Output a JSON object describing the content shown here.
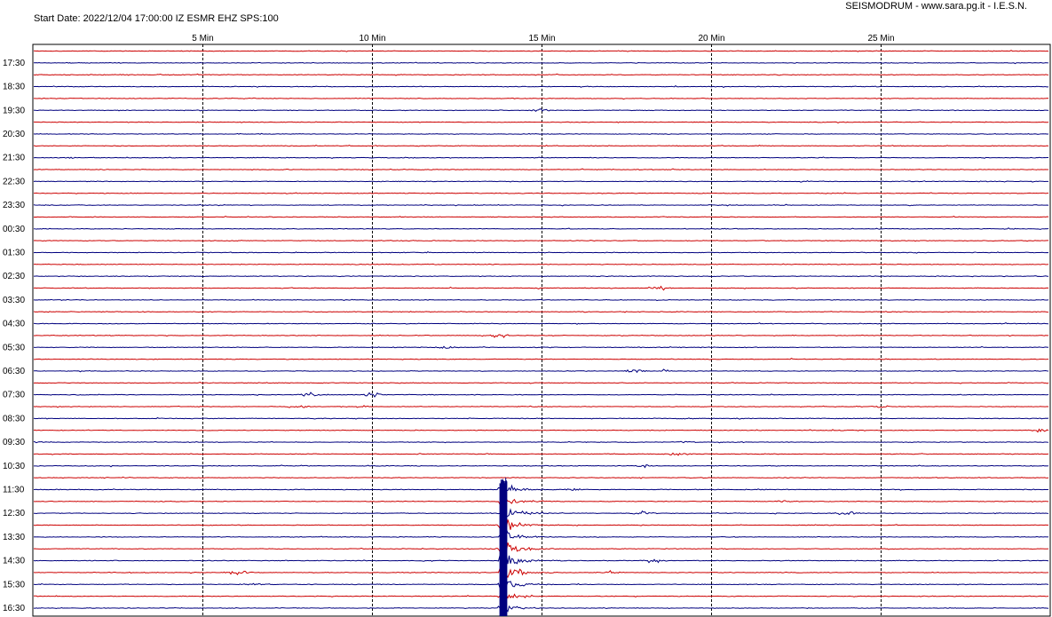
{
  "header": {
    "start_date": "Start Date: 2022/12/04 17:00:00 IZ ESMR EHZ SPS:100",
    "credit": "SEISMODRUM - www.sara.pg.it - I.E.S.N."
  },
  "chart_data": {
    "type": "line",
    "title": "",
    "x_unit": "Min",
    "xlim": [
      0,
      30
    ],
    "x_ticks": [
      {
        "value": 5,
        "label": "5 Min"
      },
      {
        "value": 10,
        "label": "10 Min"
      },
      {
        "value": 15,
        "label": "15 Min"
      },
      {
        "value": 20,
        "label": "20 Min"
      },
      {
        "value": 25,
        "label": "25 Min"
      }
    ],
    "grid": true,
    "row_labels": [
      "17:30",
      "18:30",
      "19:30",
      "20:30",
      "21:30",
      "22:30",
      "23:30",
      "00:30",
      "01:30",
      "02:30",
      "03:30",
      "04:30",
      "05:30",
      "06:30",
      "07:30",
      "08:30",
      "09:30",
      "10:30",
      "11:30",
      "12:30",
      "13:30",
      "14:30",
      "15:30",
      "16:30"
    ],
    "trace_colors": {
      "even": "#cc0000",
      "odd": "#00007f",
      "background": "#ffffff",
      "grid": "#000000"
    },
    "events": [
      {
        "trace": 2,
        "minute": 2.7,
        "amplitude": 0.8
      },
      {
        "trace": 5,
        "minute": 15.0,
        "amplitude": 1.5
      },
      {
        "trace": 9,
        "minute": 1.1,
        "amplitude": 0.6
      },
      {
        "trace": 9,
        "minute": 11.1,
        "amplitude": 0.6
      },
      {
        "trace": 20,
        "minute": 18.5,
        "amplitude": 2.6
      },
      {
        "trace": 24,
        "minute": 13.8,
        "amplitude": 2.5
      },
      {
        "trace": 25,
        "minute": 12.2,
        "amplitude": 2.6
      },
      {
        "trace": 27,
        "minute": 17.8,
        "amplitude": 2.8
      },
      {
        "trace": 27,
        "minute": 18.6,
        "amplitude": 2.0
      },
      {
        "trace": 29,
        "minute": 8.2,
        "amplitude": 3.2
      },
      {
        "trace": 29,
        "minute": 10.0,
        "amplitude": 3.4
      },
      {
        "trace": 30,
        "minute": 7.8,
        "amplitude": 1.8
      },
      {
        "trace": 30,
        "minute": 9.8,
        "amplitude": 1.4
      },
      {
        "trace": 30,
        "minute": 25.0,
        "amplitude": 1.4
      },
      {
        "trace": 31,
        "minute": 19.3,
        "amplitude": 1.0
      },
      {
        "trace": 32,
        "minute": 29.8,
        "amplitude": 2.5
      },
      {
        "trace": 33,
        "minute": 0.1,
        "amplitude": 1.5
      },
      {
        "trace": 33,
        "minute": 19.2,
        "amplitude": 1.2
      },
      {
        "trace": 34,
        "minute": 19.0,
        "amplitude": 2.6
      },
      {
        "trace": 35,
        "minute": 18.0,
        "amplitude": 1.6
      },
      {
        "trace": 37,
        "minute": 16.0,
        "amplitude": 2.0
      },
      {
        "trace": 37,
        "minute": 21.5,
        "amplitude": 1.2
      },
      {
        "trace": 38,
        "minute": 22.2,
        "amplitude": 1.6
      },
      {
        "trace": 39,
        "minute": 18.0,
        "amplitude": 2.5
      },
      {
        "trace": 39,
        "minute": 24.0,
        "amplitude": 2.8
      },
      {
        "trace": 42,
        "minute": 13.8,
        "amplitude": 2.5
      },
      {
        "trace": 43,
        "minute": 18.3,
        "amplitude": 2.8
      },
      {
        "trace": 44,
        "minute": 6.0,
        "amplitude": 3.2
      },
      {
        "trace": 44,
        "minute": 17.0,
        "amplitude": 2.0
      },
      {
        "trace": 45,
        "minute": 6.4,
        "amplitude": 1.6
      }
    ],
    "earthquake": {
      "start_minute": 13.7,
      "peak_minute": 13.85,
      "first_trace": 37,
      "last_trace": 47,
      "traces": [
        {
          "trace": 37,
          "amplitude": 9.0
        },
        {
          "trace": 38,
          "amplitude": 14.0
        },
        {
          "trace": 39,
          "amplitude": 16.0
        },
        {
          "trace": 40,
          "amplitude": 15.0
        },
        {
          "trace": 41,
          "amplitude": 15.0
        },
        {
          "trace": 42,
          "amplitude": 16.0
        },
        {
          "trace": 43,
          "amplitude": 16.0
        },
        {
          "trace": 44,
          "amplitude": 14.0
        },
        {
          "trace": 45,
          "amplitude": 12.0
        },
        {
          "trace": 46,
          "amplitude": 12.0
        },
        {
          "trace": 47,
          "amplitude": 10.0
        }
      ]
    }
  }
}
